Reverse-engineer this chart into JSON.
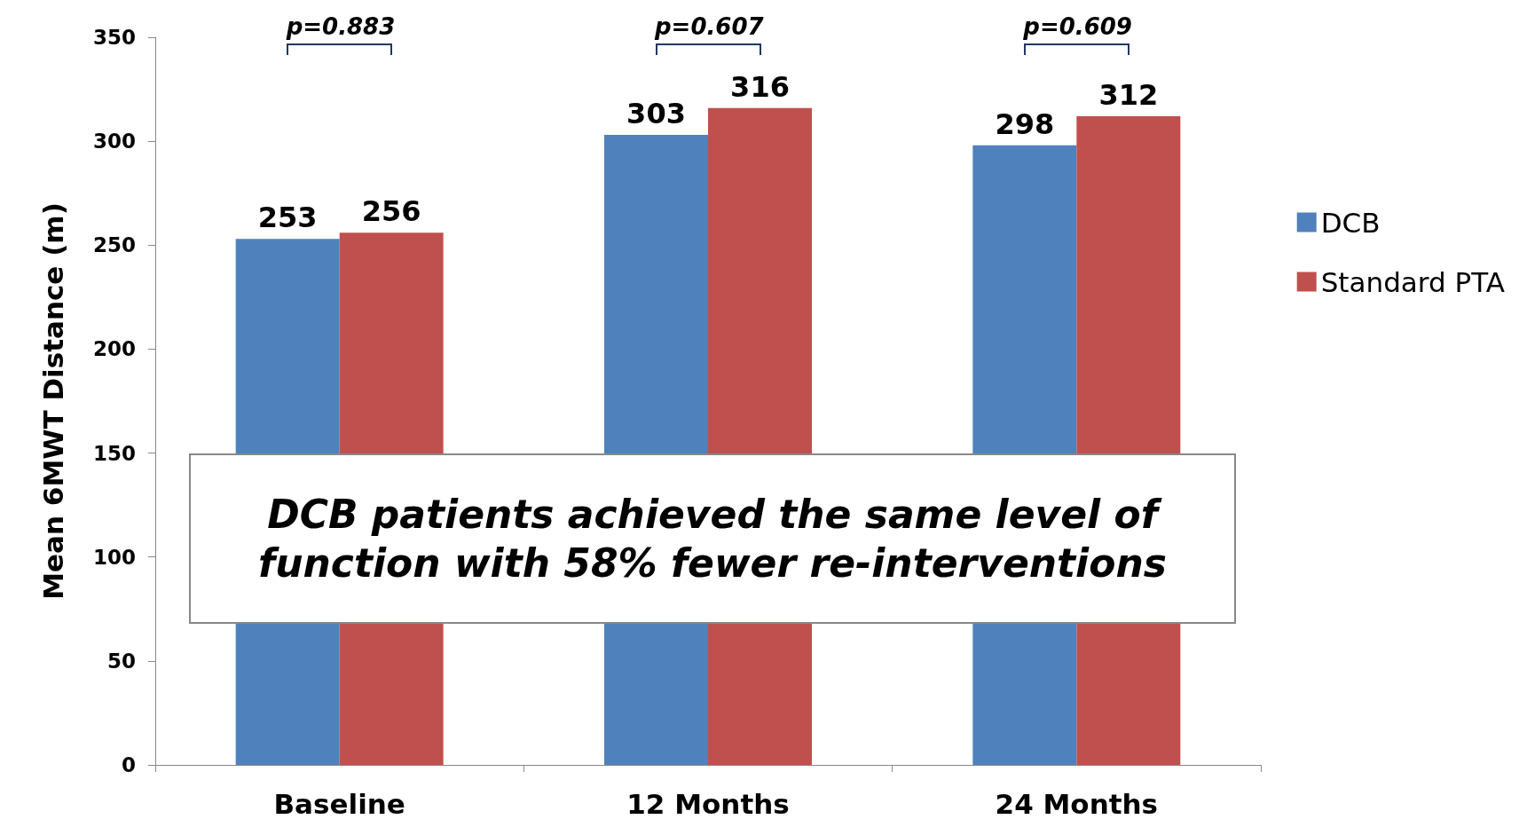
{
  "chart_data": {
    "type": "bar",
    "ylabel": "Mean 6MWT Distance (m)",
    "categories": [
      "Baseline",
      "12 Months",
      "24 Months"
    ],
    "series": [
      {
        "name": "DCB",
        "color": "#4f81bd",
        "values": [
          253,
          303,
          298
        ]
      },
      {
        "name": "Standard PTA",
        "color": "#c0504d",
        "values": [
          256,
          316,
          312
        ]
      }
    ],
    "ylim": [
      0,
      350
    ],
    "yticks": [
      0,
      50,
      100,
      150,
      200,
      250,
      300,
      350
    ],
    "grid": false,
    "legend": "right",
    "data_labels": true,
    "annotations": [
      "p=0.883",
      "p=0.607",
      "p=0.609",
      "DCB patients achieved the same level of function with 58% fewer re-interventions"
    ]
  }
}
